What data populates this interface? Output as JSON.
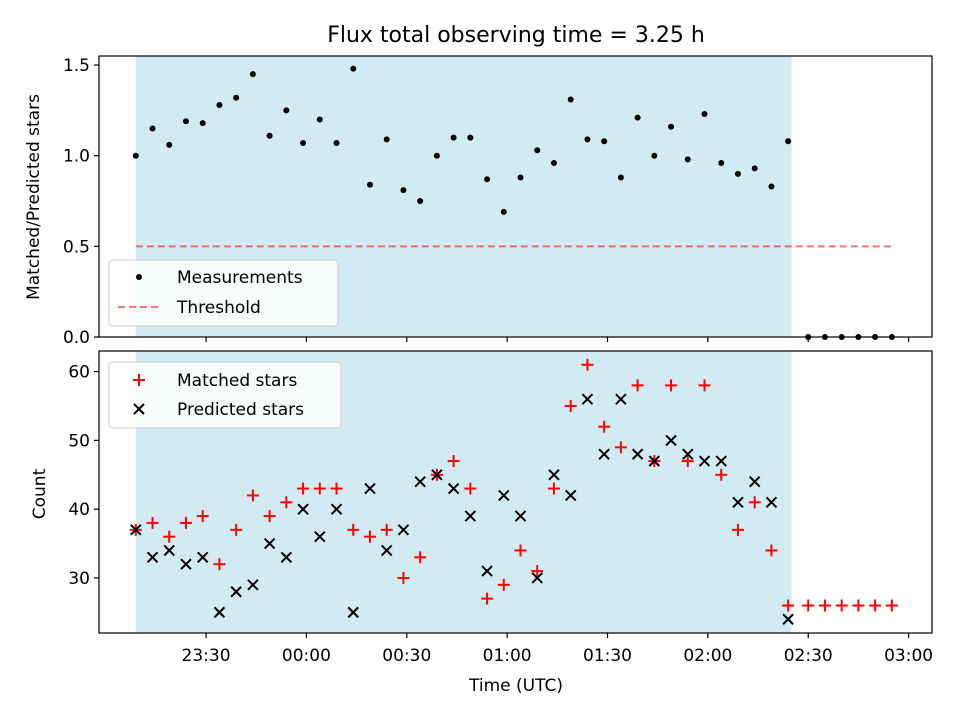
{
  "title": "Flux total observing time = 3.25 h",
  "colors": {
    "span": "#add8e6",
    "threshold": "#ff0000",
    "matched": "#ff0000",
    "predicted": "#000000",
    "measurement": "#000000"
  },
  "chart_data": [
    {
      "type": "scatter",
      "ylabel": "Matched/Predicted stars",
      "ylim": [
        0,
        1.55
      ],
      "yticks": [
        0.0,
        0.5,
        1.0,
        1.5
      ],
      "ytick_labels": [
        "0.0",
        "0.5",
        "1.0",
        "1.5"
      ],
      "xlim_minutes": [
        -62,
        187
      ],
      "shaded_span_minutes": [
        -51,
        145
      ],
      "legend": {
        "placement": "lower-left",
        "entries": [
          "Measurements",
          "Threshold"
        ]
      },
      "series": [
        {
          "name": "Measurements",
          "marker": "dot",
          "x": [
            -51,
            -46,
            -41,
            -36,
            -31,
            -26,
            -21,
            -16,
            -11,
            -6,
            -1,
            4,
            9,
            14,
            19,
            24,
            29,
            34,
            39,
            44,
            49,
            54,
            59,
            64,
            69,
            74,
            79,
            84,
            89,
            94,
            99,
            104,
            109,
            114,
            119,
            124,
            129,
            134,
            139,
            144,
            150,
            155,
            160,
            165,
            170,
            175
          ],
          "y": [
            1.0,
            1.15,
            1.06,
            1.19,
            1.18,
            1.28,
            1.32,
            1.45,
            1.11,
            1.25,
            1.07,
            1.2,
            1.07,
            1.48,
            0.84,
            1.09,
            0.81,
            0.75,
            1.0,
            1.1,
            1.1,
            0.87,
            0.69,
            0.88,
            1.03,
            0.96,
            1.31,
            1.09,
            1.08,
            0.88,
            1.21,
            1.0,
            1.16,
            0.98,
            1.23,
            0.96,
            0.9,
            0.93,
            0.83,
            1.08,
            0,
            0,
            0,
            0,
            0,
            0
          ]
        },
        {
          "name": "Threshold",
          "marker": "dashed-line",
          "x": [
            -51,
            175
          ],
          "y": [
            0.5,
            0.5
          ]
        }
      ]
    },
    {
      "type": "scatter",
      "ylabel": "Count",
      "xlabel": "Time (UTC)",
      "ylim": [
        22,
        63
      ],
      "yticks": [
        30,
        40,
        50,
        60
      ],
      "ytick_labels": [
        "30",
        "40",
        "50",
        "60"
      ],
      "xlim_minutes": [
        -62,
        187
      ],
      "xticks_minutes": [
        -30,
        0,
        30,
        60,
        90,
        120,
        150,
        180
      ],
      "xtick_labels": [
        "23:30",
        "00:00",
        "00:30",
        "01:00",
        "01:30",
        "02:00",
        "02:30",
        "03:00"
      ],
      "shaded_span_minutes": [
        -51,
        145
      ],
      "legend": {
        "placement": "upper-left",
        "entries": [
          "Matched stars",
          "Predicted stars"
        ]
      },
      "series": [
        {
          "name": "Matched stars",
          "marker": "plus",
          "x": [
            -51,
            -46,
            -41,
            -36,
            -31,
            -26,
            -21,
            -16,
            -11,
            -6,
            -1,
            4,
            9,
            14,
            19,
            24,
            29,
            34,
            39,
            44,
            49,
            54,
            59,
            64,
            69,
            74,
            79,
            84,
            89,
            94,
            99,
            104,
            109,
            114,
            119,
            124,
            129,
            134,
            139,
            144,
            150,
            155,
            160,
            165,
            170,
            175
          ],
          "y": [
            37,
            38,
            36,
            38,
            39,
            32,
            37,
            42,
            39,
            41,
            43,
            43,
            43,
            37,
            36,
            37,
            30,
            33,
            45,
            47,
            43,
            27,
            29,
            34,
            31,
            43,
            55,
            61,
            52,
            49,
            58,
            47,
            58,
            47,
            58,
            45,
            37,
            41,
            34,
            26,
            26,
            26,
            26,
            26,
            26,
            26
          ]
        },
        {
          "name": "Predicted stars",
          "marker": "x",
          "x": [
            -51,
            -46,
            -41,
            -36,
            -31,
            -26,
            -21,
            -16,
            -11,
            -6,
            -1,
            4,
            9,
            14,
            19,
            24,
            29,
            34,
            39,
            44,
            49,
            54,
            59,
            64,
            69,
            74,
            79,
            84,
            89,
            94,
            99,
            104,
            109,
            114,
            119,
            124,
            129,
            134,
            139,
            144
          ],
          "y": [
            37,
            33,
            34,
            32,
            33,
            25,
            28,
            29,
            35,
            33,
            40,
            36,
            40,
            25,
            43,
            34,
            37,
            44,
            45,
            43,
            39,
            31,
            42,
            39,
            30,
            45,
            42,
            56,
            48,
            56,
            48,
            47,
            50,
            48,
            47,
            47,
            41,
            44,
            41,
            24
          ]
        }
      ]
    }
  ]
}
